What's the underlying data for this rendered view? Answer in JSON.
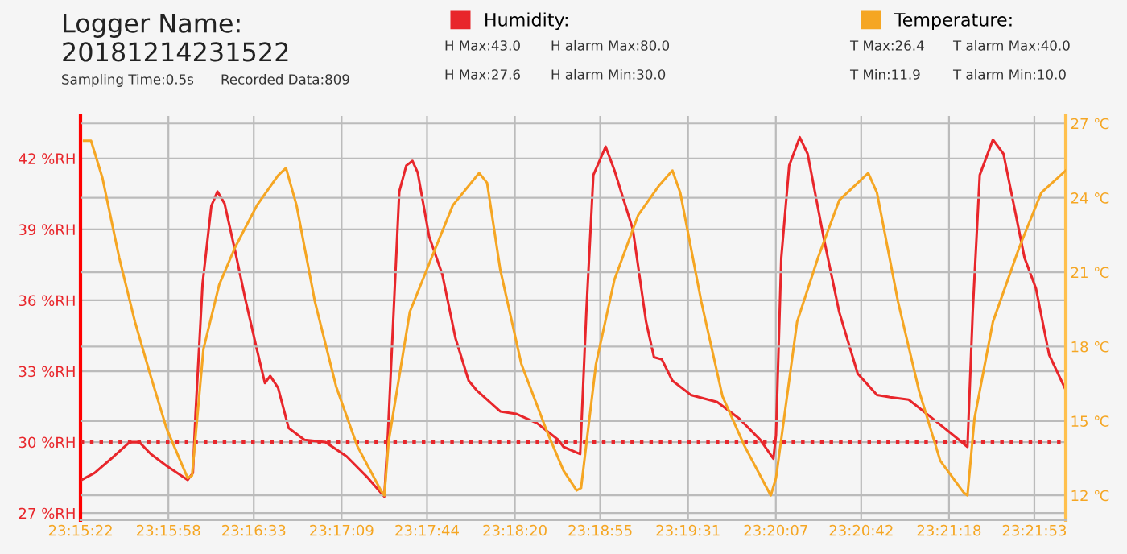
{
  "chart_data": {
    "type": "line",
    "title": "Logger Name:\n20181214231522",
    "annotations": [
      "Sampling Time:0.5s",
      "Recorded Data:809",
      "H Max:43.0",
      "H alarm Max:80.0",
      "H Max:27.6",
      "H alarm Min:30.0",
      "T Max:26.4",
      "T alarm Max:40.0",
      "T Min:11.9",
      "T alarm Min:10.0"
    ],
    "xlim": [
      23.2561,
      23.3683
    ],
    "xticks": [
      {
        "value": 23.25611,
        "label": "23:15:22"
      },
      {
        "value": 23.26611,
        "label": "23:15:58"
      },
      {
        "value": 23.27583,
        "label": "23:16:33"
      },
      {
        "value": 23.28583,
        "label": "23:17:09"
      },
      {
        "value": 23.29556,
        "label": "23:17:44"
      },
      {
        "value": 23.30556,
        "label": "23:18:20"
      },
      {
        "value": 23.31528,
        "label": "23:18:55"
      },
      {
        "value": 23.32528,
        "label": "23:19:31"
      },
      {
        "value": 23.33528,
        "label": "23:20:07"
      },
      {
        "value": 23.345,
        "label": "23:20:42"
      },
      {
        "value": 23.355,
        "label": "23:21:18"
      },
      {
        "value": 23.36472,
        "label": "23:21:53"
      }
    ],
    "ylim": [
      26.7,
      43.8
    ],
    "yticks": [
      {
        "value": 27,
        "label": "27 %RH"
      },
      {
        "value": 30,
        "label": "30 %RH"
      },
      {
        "value": 33,
        "label": "33 %RH"
      },
      {
        "value": 36,
        "label": "36 %RH"
      },
      {
        "value": 39,
        "label": "39 %RH"
      },
      {
        "value": 42,
        "label": "42 %RH"
      }
    ],
    "y2lim": [
      11.0,
      27.3
    ],
    "y2ticks": [
      {
        "value": 12,
        "label": "12 ℃"
      },
      {
        "value": 15,
        "label": "15 ℃"
      },
      {
        "value": 18,
        "label": "18 ℃"
      },
      {
        "value": 21,
        "label": "21 ℃"
      },
      {
        "value": 24,
        "label": "24 ℃"
      },
      {
        "value": 27,
        "label": "27 ℃"
      }
    ],
    "grid": true,
    "legend": "top",
    "marker": "none",
    "line_style": "solid",
    "ref_lines": [
      {
        "axis": "y",
        "value": 30,
        "label": null,
        "color": "#e8262b",
        "line_style": "dotted"
      }
    ],
    "series": [
      {
        "name": "Humidity:",
        "color": "#e8262b",
        "x": [
          23.2562,
          23.2577,
          23.2599,
          23.2617,
          23.2628,
          23.2641,
          23.2659,
          23.2683,
          23.2689,
          23.2692,
          23.27,
          23.271,
          23.2717,
          23.2725,
          23.2737,
          23.2749,
          23.2762,
          23.2771,
          23.2777,
          23.2786,
          23.2798,
          23.2816,
          23.284,
          23.2864,
          23.2888,
          23.2907,
          23.2911,
          23.2924,
          23.2932,
          23.2939,
          23.2945,
          23.2958,
          23.2973,
          23.2988,
          23.3003,
          23.3012,
          23.3021,
          23.3039,
          23.3057,
          23.3081,
          23.3105,
          23.3111,
          23.313,
          23.3137,
          23.3145,
          23.3159,
          23.3169,
          23.319,
          23.3205,
          23.3214,
          23.3223,
          23.3235,
          23.3256,
          23.3286,
          23.3311,
          23.3335,
          23.335,
          23.3353,
          23.3359,
          23.3368,
          23.338,
          23.3389,
          23.3407,
          23.3425,
          23.3446,
          23.3468,
          23.3483,
          23.3504,
          23.3528,
          23.3558,
          23.3571,
          23.3577,
          23.3585,
          23.36,
          23.3612,
          23.3636,
          23.3649,
          23.3664,
          23.3683
        ],
        "values": [
          28.4,
          28.7,
          29.4,
          30.0,
          30.0,
          29.5,
          29.0,
          28.4,
          28.7,
          31.2,
          36.7,
          40.0,
          40.6,
          40.1,
          38.1,
          36.0,
          33.9,
          32.5,
          32.8,
          32.3,
          30.6,
          30.1,
          30.0,
          29.4,
          28.5,
          27.7,
          30.3,
          40.6,
          41.7,
          41.9,
          41.4,
          38.7,
          37.1,
          34.4,
          32.6,
          32.2,
          31.9,
          31.3,
          31.2,
          30.8,
          30.1,
          29.8,
          29.5,
          35.5,
          41.3,
          42.5,
          41.5,
          39.0,
          35.1,
          33.6,
          33.5,
          32.6,
          32.0,
          31.7,
          31.0,
          30.1,
          29.3,
          30.3,
          37.8,
          41.7,
          42.9,
          42.2,
          38.7,
          35.5,
          32.9,
          32.0,
          31.9,
          31.8,
          31.1,
          30.2,
          29.8,
          35.5,
          41.3,
          42.8,
          42.2,
          37.8,
          36.5,
          33.7,
          32.2
        ]
      },
      {
        "name": "Temperature:",
        "color": "#f5a623",
        "axis": "y2",
        "x": [
          23.2565,
          23.2573,
          23.2586,
          23.2605,
          23.2623,
          23.2641,
          23.2659,
          23.2683,
          23.2688,
          23.2701,
          23.2719,
          23.2737,
          23.2762,
          23.2786,
          23.2795,
          23.2807,
          23.2828,
          23.2852,
          23.2876,
          23.2903,
          23.2907,
          23.2912,
          23.2936,
          23.2961,
          23.2985,
          23.3015,
          23.3024,
          23.3039,
          23.3063,
          23.3093,
          23.3111,
          23.3126,
          23.3131,
          23.3148,
          23.3169,
          23.3196,
          23.322,
          23.3235,
          23.3244,
          23.3268,
          23.3292,
          23.3317,
          23.3347,
          23.3353,
          23.3377,
          23.3401,
          23.3425,
          23.3449,
          23.3458,
          23.3468,
          23.3492,
          23.3516,
          23.354,
          23.3567,
          23.3571,
          23.3579,
          23.36,
          23.363,
          23.3655,
          23.3683
        ],
        "values": [
          26.3,
          26.3,
          24.8,
          21.6,
          19.0,
          16.8,
          14.7,
          12.7,
          12.8,
          17.9,
          20.5,
          22.0,
          23.7,
          24.9,
          25.2,
          23.7,
          19.8,
          16.4,
          14.0,
          12.2,
          12.0,
          14.2,
          19.4,
          21.6,
          23.7,
          25.0,
          24.6,
          21.1,
          17.3,
          14.5,
          13.0,
          12.2,
          12.3,
          17.3,
          20.7,
          23.3,
          24.5,
          25.1,
          24.2,
          19.8,
          16.0,
          14.0,
          12.0,
          12.7,
          19.0,
          21.6,
          23.9,
          24.7,
          25.0,
          24.2,
          19.8,
          16.2,
          13.4,
          12.1,
          12.0,
          15.1,
          19.0,
          22.0,
          24.2,
          25.1
        ]
      }
    ]
  }
}
